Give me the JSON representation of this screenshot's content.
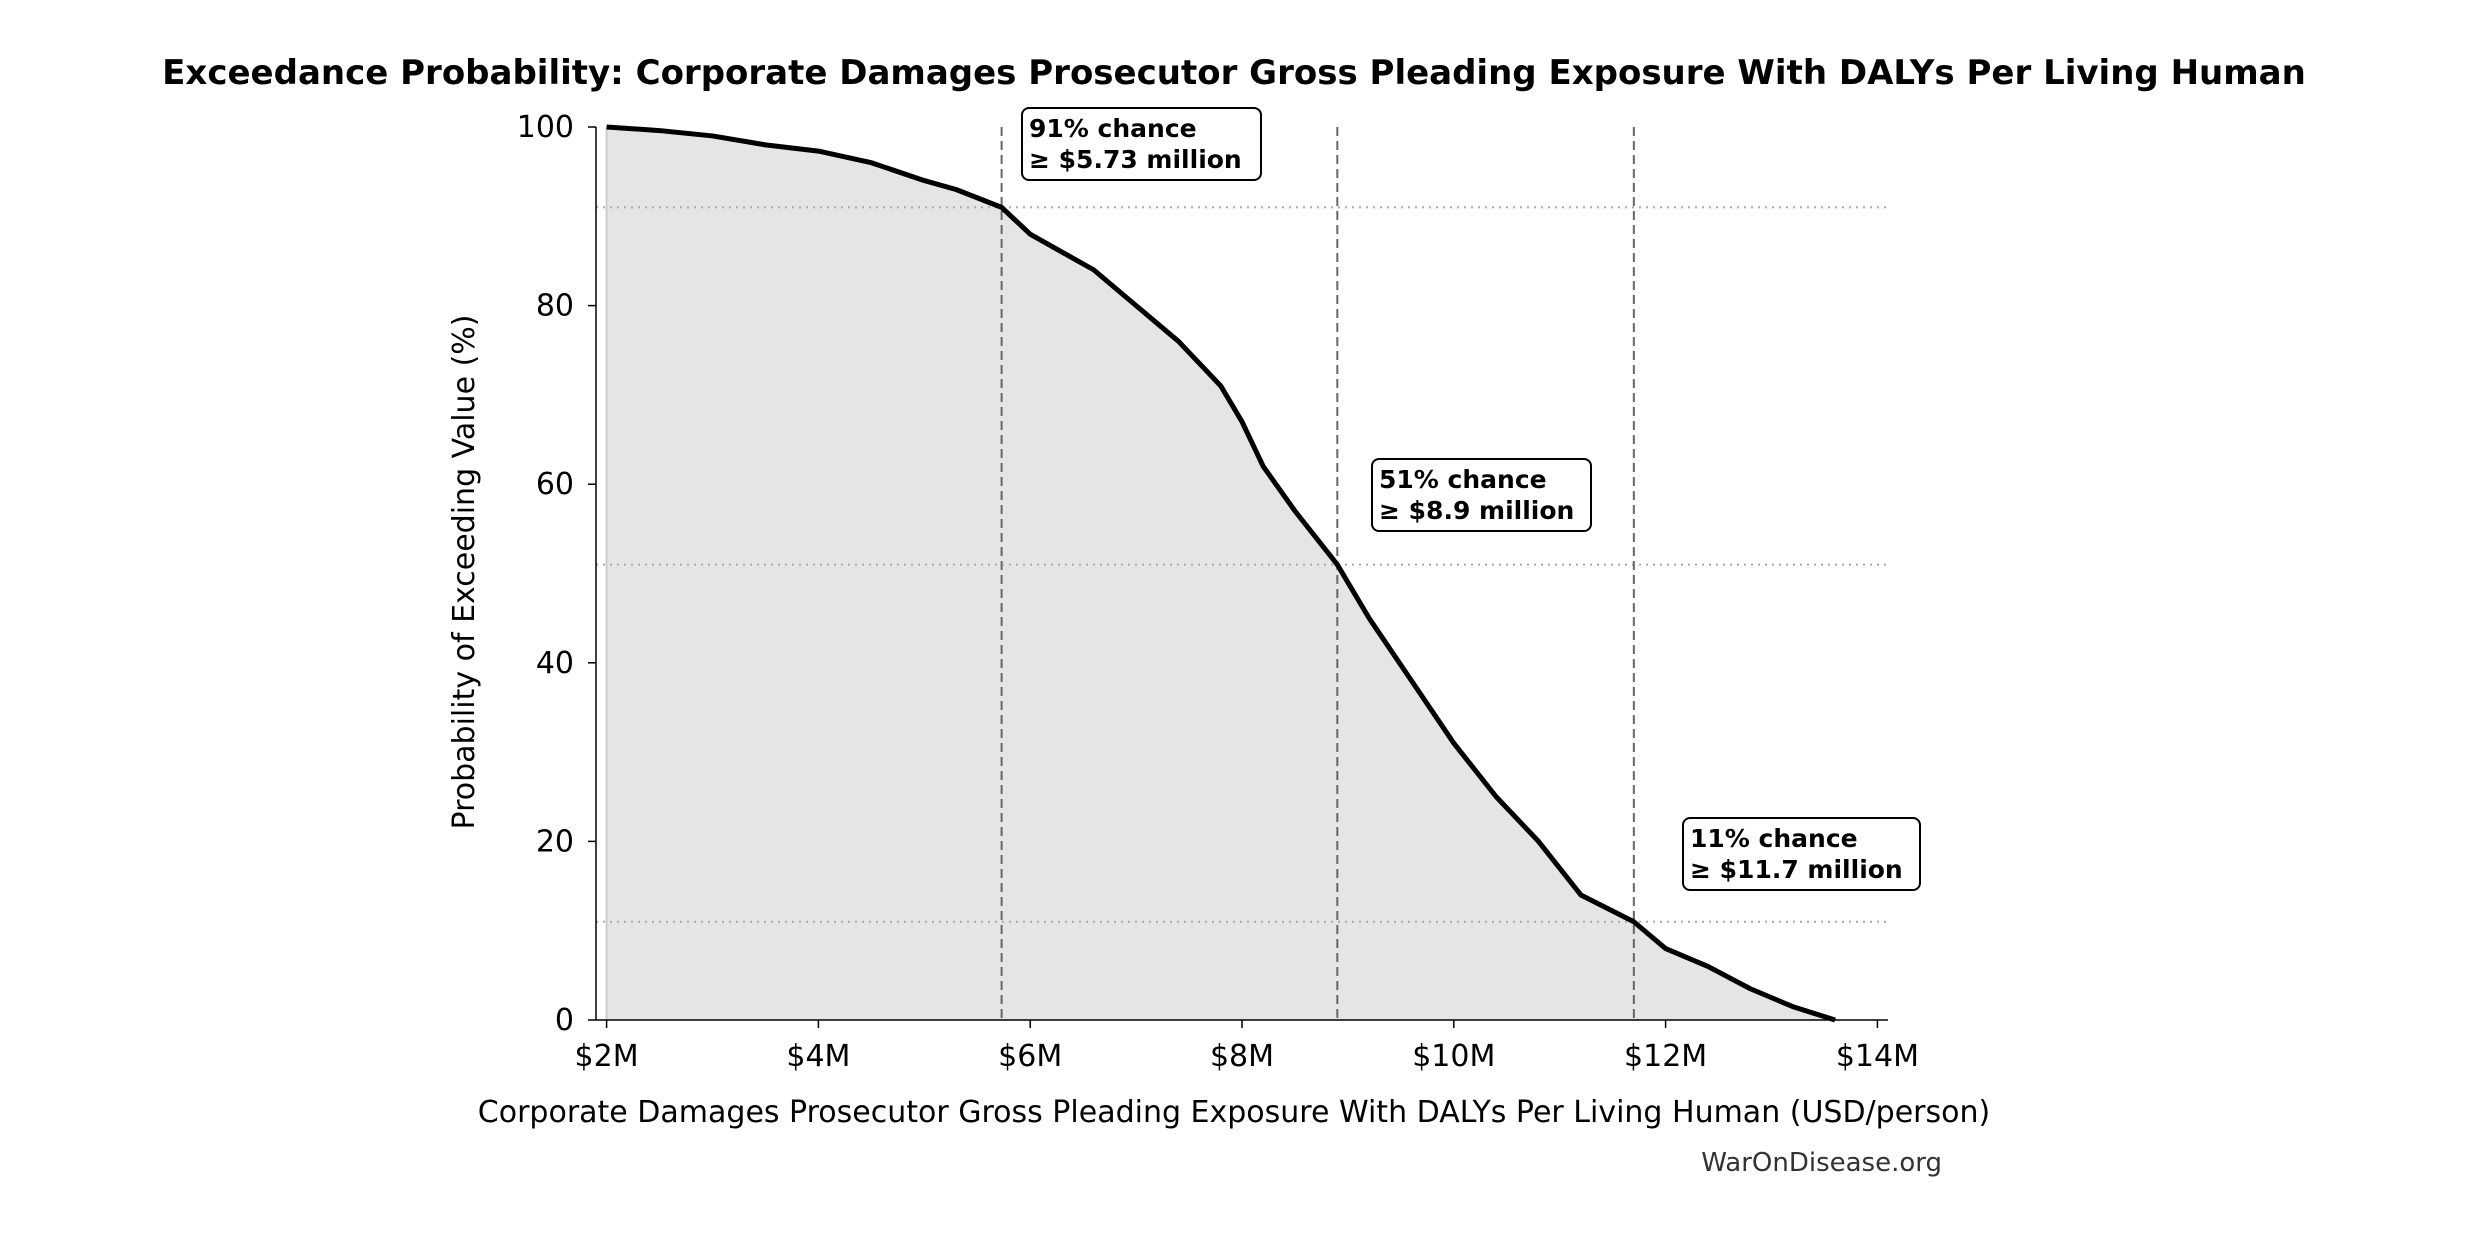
{
  "chart_data": {
    "type": "area",
    "title": "Exceedance Probability: Corporate Damages Prosecutor Gross Pleading Exposure With DALYs Per Living Human",
    "xlabel": "Corporate Damages Prosecutor Gross Pleading Exposure With DALYs Per Living Human (USD/person)",
    "ylabel": "Probability of Exceeding Value (%)",
    "xlim": [
      1.9,
      14.1
    ],
    "ylim": [
      0,
      100
    ],
    "x_unit": "million USD",
    "x_ticks": [
      2,
      4,
      6,
      8,
      10,
      12,
      14
    ],
    "x_tick_labels": [
      "$2M",
      "$4M",
      "$6M",
      "$8M",
      "$10M",
      "$12M",
      "$14M"
    ],
    "y_ticks": [
      0,
      20,
      40,
      60,
      80,
      100
    ],
    "y_tick_labels": [
      "0",
      "20",
      "40",
      "60",
      "80",
      "100"
    ],
    "grid": false,
    "fill_color": "#e5e5e5",
    "line_color": "#000000",
    "series": [
      {
        "x": [
          2.0,
          2.5,
          3.0,
          3.5,
          4.0,
          4.5,
          5.0,
          5.3,
          5.73,
          6.0,
          6.3,
          6.6,
          7.0,
          7.4,
          7.8,
          8.0,
          8.2,
          8.5,
          8.9,
          9.2,
          9.6,
          10.0,
          10.4,
          10.8,
          11.2,
          11.7,
          12.0,
          12.4,
          12.8,
          13.2,
          13.6
        ],
        "y": [
          100,
          99.6,
          99,
          98,
          97.3,
          96,
          94,
          93,
          91,
          88,
          86,
          84,
          80,
          76,
          71,
          67,
          62,
          57,
          51,
          45,
          38,
          31,
          25,
          20,
          14,
          11,
          8,
          6,
          3.5,
          1.5,
          0
        ]
      }
    ],
    "markers": [
      {
        "x": 5.73,
        "y": 91,
        "line1": "91% chance",
        "line2": "≥ $5.73 million"
      },
      {
        "x": 8.9,
        "y": 51,
        "line1": "51% chance",
        "line2": "≥ $8.9 million"
      },
      {
        "x": 11.7,
        "y": 11,
        "line1": "11% chance",
        "line2": "≥ $11.7 million"
      }
    ]
  },
  "watermark": "WarOnDisease.org"
}
